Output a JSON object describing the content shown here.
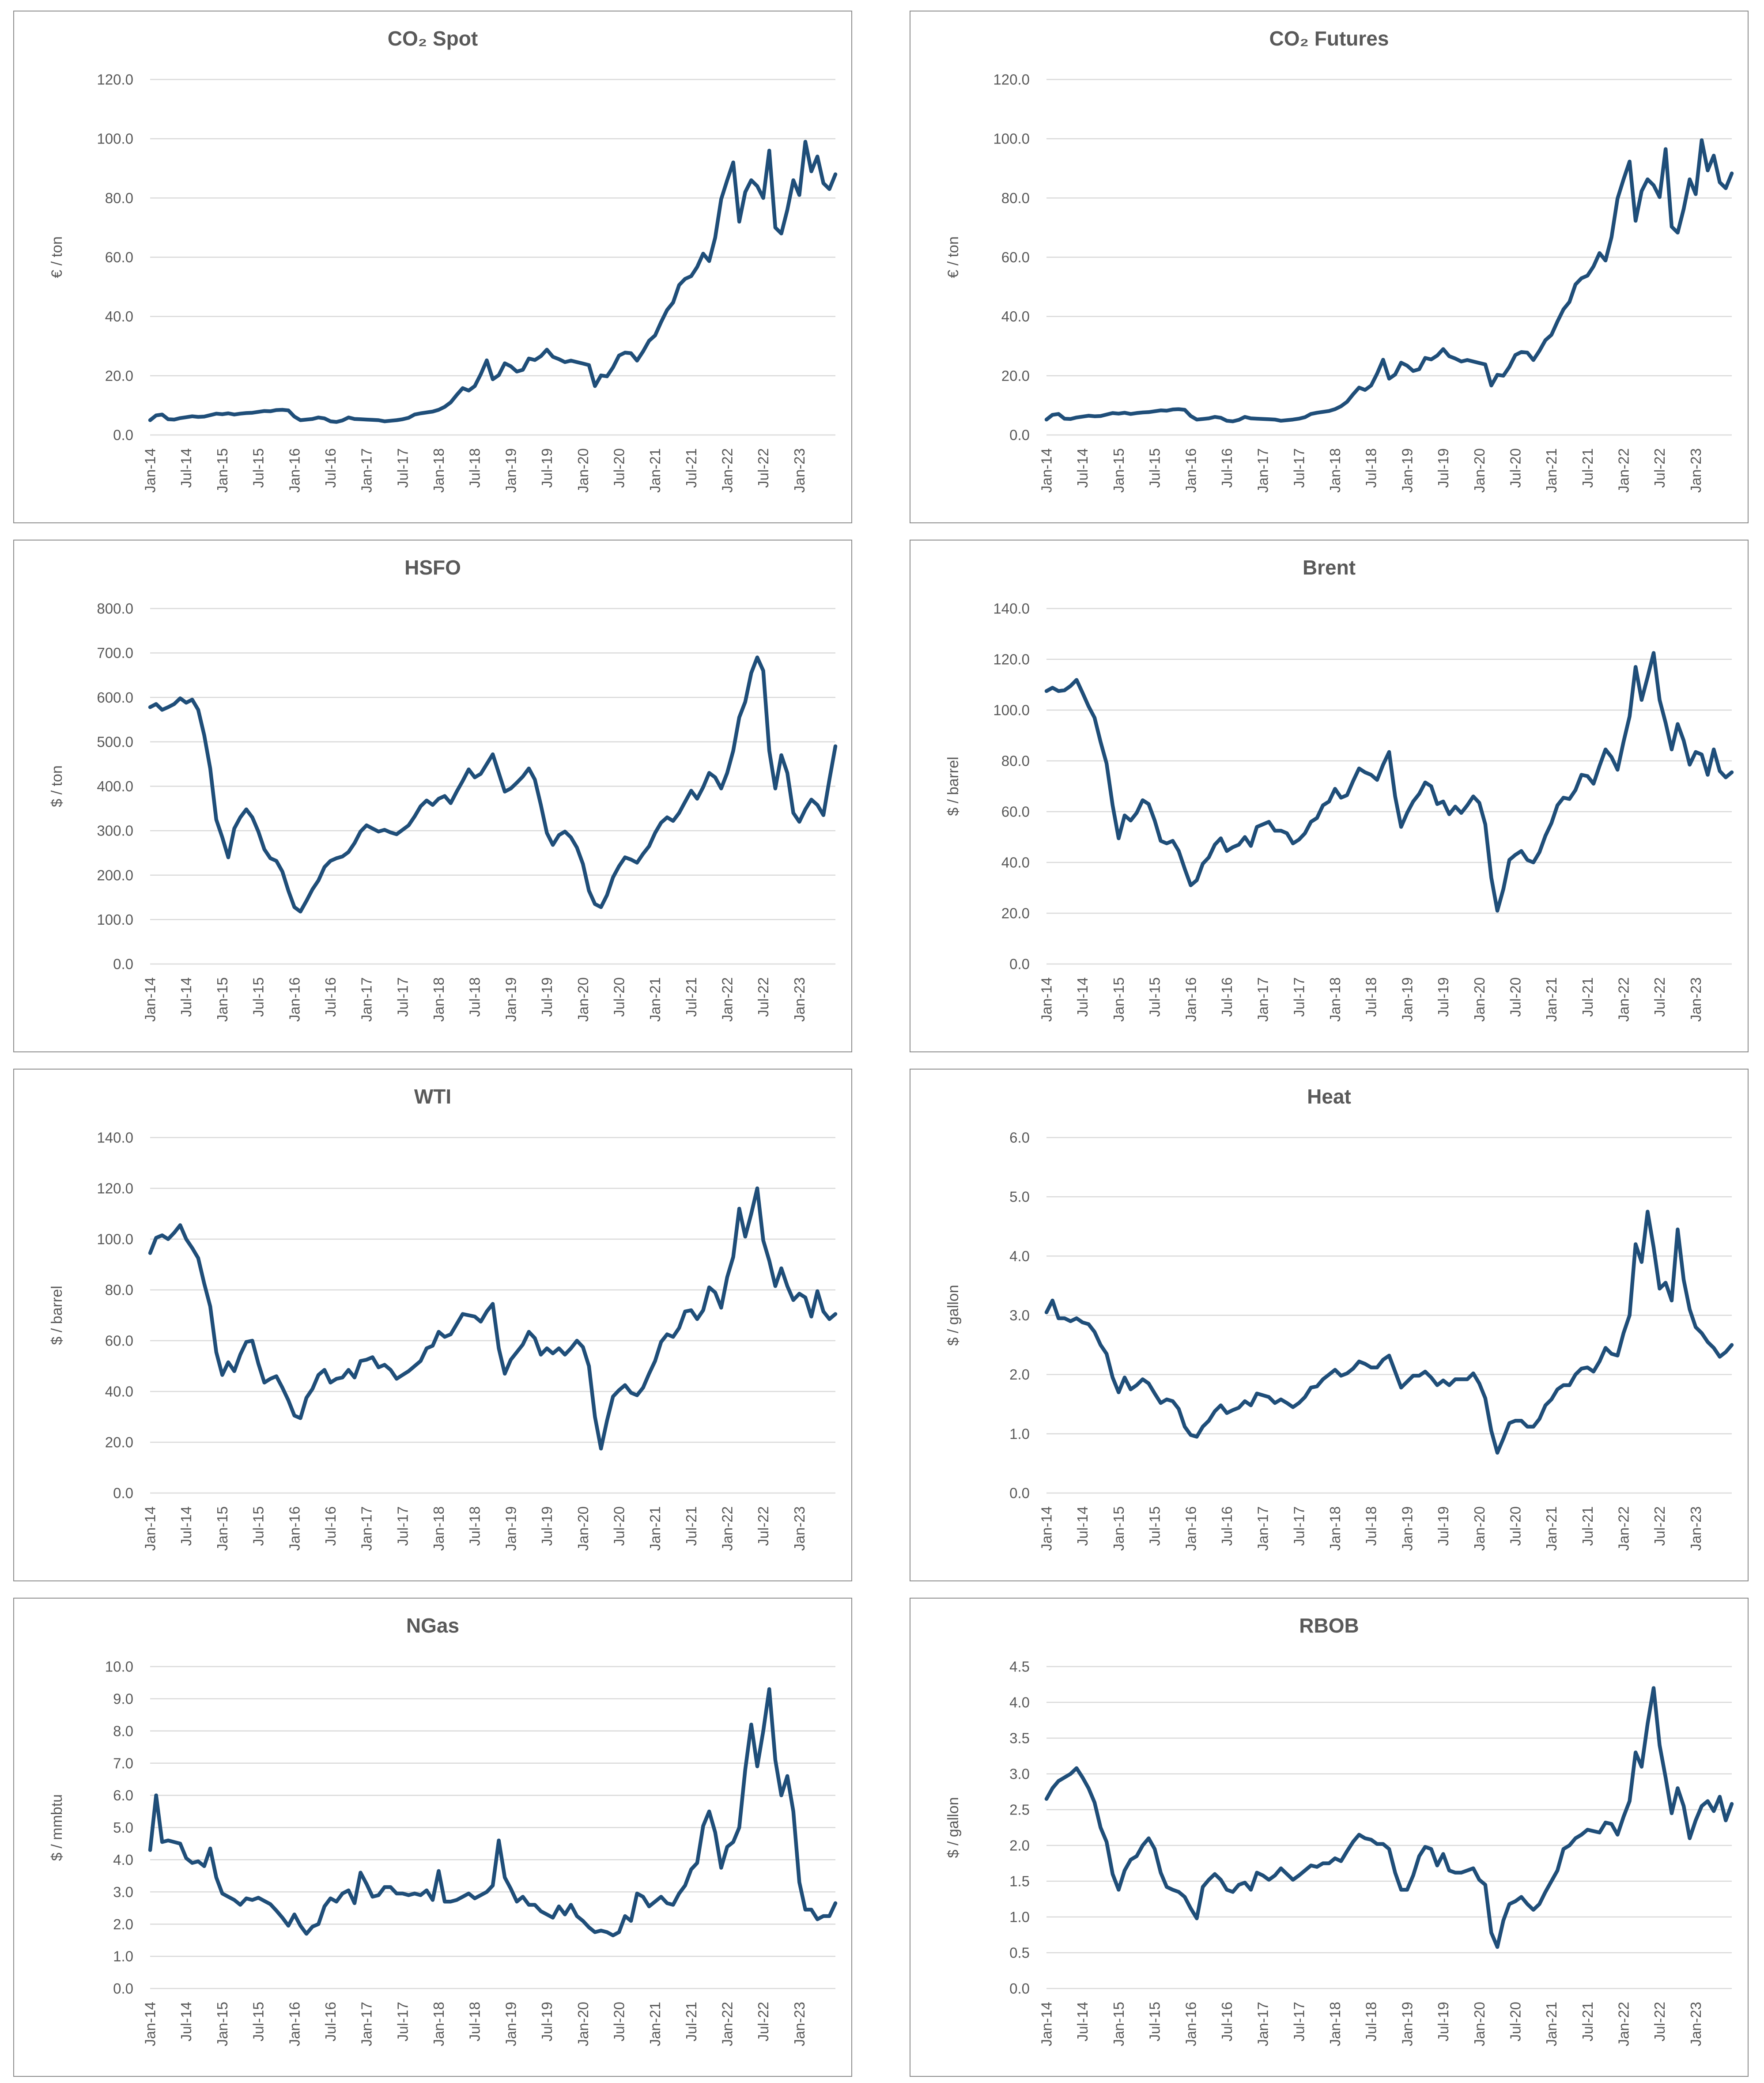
{
  "style": {
    "line_color": "#1F4E79",
    "grid_color": "#D9D9D9",
    "text_color": "#595959",
    "title_color": "#595959",
    "border_color": "#8c8c8c",
    "background": "#ffffff"
  },
  "x_tick_labels": [
    "Jan-14",
    "Jul-14",
    "Jan-15",
    "Jul-15",
    "Jan-16",
    "Jul-16",
    "Jan-17",
    "Jul-17",
    "Jan-18",
    "Jul-18",
    "Jan-19",
    "Jul-19",
    "Jan-20",
    "Jul-20",
    "Jan-21",
    "Jul-21",
    "Jan-22",
    "Jul-22",
    "Jan-23"
  ],
  "chart_data": [
    {
      "type": "line",
      "title": "CO₂ Spot",
      "ylabel": "€ / ton",
      "ylim": [
        0,
        120
      ],
      "ystep": 20,
      "grid": true,
      "legend": "none",
      "x_monthly_from": "Jan-14",
      "x_monthly_to": "Jul-23",
      "values": [
        5.0,
        6.6,
        6.9,
        5.3,
        5.2,
        5.7,
        6.0,
        6.3,
        6.1,
        6.2,
        6.7,
        7.2,
        7.0,
        7.3,
        6.9,
        7.2,
        7.4,
        7.5,
        7.8,
        8.1,
        8.0,
        8.4,
        8.5,
        8.3,
        6.2,
        5.0,
        5.2,
        5.4,
        5.9,
        5.6,
        4.6,
        4.4,
        4.9,
        5.9,
        5.4,
        5.3,
        5.2,
        5.1,
        5.0,
        4.6,
        4.8,
        5.0,
        5.3,
        5.8,
        6.9,
        7.3,
        7.6,
        7.9,
        8.5,
        9.5,
        11.0,
        13.5,
        15.8,
        15.0,
        16.5,
        20.5,
        25.2,
        18.8,
        20.2,
        24.2,
        23.2,
        21.4,
        22.0,
        25.8,
        25.3,
        26.6,
        28.8,
        26.4,
        25.6,
        24.6,
        25.1,
        24.6,
        24.1,
        23.6,
        16.5,
        20.1,
        19.8,
        22.8,
        26.8,
        27.8,
        27.6,
        25.1,
        28.2,
        31.8,
        33.6,
        38.1,
        42.2,
        44.7,
        50.6,
        52.7,
        53.6,
        56.7,
        61.2,
        58.7,
        66.6,
        79.6,
        86.0,
        92.0,
        72.0,
        82.0,
        86.0,
        84.0,
        80.0,
        96.0,
        70.0,
        68.0,
        76.0,
        86.0,
        81.0,
        99.0,
        89.0,
        94.0,
        85.0,
        83.0,
        88.0
      ]
    },
    {
      "type": "line",
      "title": "CO₂ Futures",
      "ylabel": "€ / ton",
      "ylim": [
        0,
        120
      ],
      "ystep": 20,
      "grid": true,
      "legend": "none",
      "x_monthly_from": "Jan-14",
      "x_monthly_to": "Jul-23",
      "values": [
        5.2,
        6.8,
        7.1,
        5.5,
        5.4,
        5.9,
        6.2,
        6.5,
        6.3,
        6.4,
        6.9,
        7.4,
        7.2,
        7.5,
        7.1,
        7.4,
        7.6,
        7.7,
        8.0,
        8.3,
        8.2,
        8.6,
        8.7,
        8.5,
        6.4,
        5.2,
        5.4,
        5.6,
        6.1,
        5.8,
        4.8,
        4.6,
        5.1,
        6.1,
        5.6,
        5.5,
        5.4,
        5.3,
        5.2,
        4.8,
        5.0,
        5.2,
        5.5,
        6.0,
        7.1,
        7.5,
        7.8,
        8.1,
        8.7,
        9.7,
        11.2,
        13.7,
        16.0,
        15.2,
        16.7,
        20.7,
        25.4,
        19.0,
        20.4,
        24.4,
        23.4,
        21.6,
        22.2,
        26.0,
        25.5,
        26.8,
        29.0,
        26.6,
        25.8,
        24.8,
        25.3,
        24.8,
        24.3,
        23.8,
        16.7,
        20.3,
        20.0,
        23.0,
        27.0,
        28.0,
        27.8,
        25.3,
        28.4,
        32.0,
        33.8,
        38.3,
        42.4,
        44.9,
        50.8,
        52.9,
        53.8,
        56.9,
        61.4,
        58.9,
        66.8,
        79.8,
        86.3,
        92.3,
        72.3,
        82.3,
        86.3,
        84.3,
        80.3,
        96.5,
        70.3,
        68.3,
        76.3,
        86.3,
        81.3,
        99.5,
        89.3,
        94.3,
        85.3,
        83.3,
        88.3
      ]
    },
    {
      "type": "line",
      "title": "HSFO",
      "ylabel": "$ / ton",
      "ylim": [
        0,
        800
      ],
      "ystep": 100,
      "grid": true,
      "legend": "none",
      "x_monthly_from": "Jan-14",
      "x_monthly_to": "Jul-23",
      "values": [
        578,
        585,
        572,
        578,
        585,
        598,
        588,
        595,
        572,
        515,
        440,
        325,
        285,
        240,
        305,
        330,
        348,
        330,
        298,
        258,
        238,
        232,
        208,
        165,
        128,
        118,
        142,
        168,
        188,
        218,
        232,
        238,
        242,
        252,
        272,
        298,
        312,
        305,
        298,
        302,
        296,
        292,
        302,
        312,
        332,
        355,
        368,
        358,
        372,
        378,
        362,
        388,
        412,
        438,
        420,
        428,
        450,
        472,
        430,
        388,
        395,
        408,
        422,
        440,
        415,
        358,
        295,
        268,
        290,
        298,
        285,
        262,
        225,
        165,
        135,
        128,
        155,
        195,
        220,
        240,
        235,
        228,
        248,
        265,
        295,
        318,
        330,
        322,
        340,
        365,
        390,
        372,
        398,
        430,
        420,
        395,
        430,
        480,
        555,
        590,
        655,
        690,
        660,
        480,
        395,
        470,
        430,
        340,
        320,
        348,
        370,
        358,
        335,
        415,
        490
      ]
    },
    {
      "type": "line",
      "title": "Brent",
      "ylabel": "$ / barrel",
      "ylim": [
        0,
        140
      ],
      "ystep": 20,
      "grid": true,
      "legend": "none",
      "x_monthly_from": "Jan-14",
      "x_monthly_to": "Jul-23",
      "values": [
        107.5,
        108.8,
        107.5,
        107.8,
        109.5,
        111.9,
        106.8,
        101.5,
        97.0,
        87.5,
        79.0,
        62.5,
        49.5,
        58.5,
        56.5,
        59.5,
        64.5,
        63.0,
        56.5,
        48.5,
        47.5,
        48.5,
        44.5,
        37.5,
        31.0,
        33.0,
        39.5,
        42.0,
        47.0,
        49.5,
        44.5,
        46.0,
        47.0,
        50.0,
        46.5,
        54.0,
        55.0,
        56.0,
        52.5,
        52.5,
        51.5,
        47.5,
        49.0,
        51.5,
        56.0,
        57.5,
        62.5,
        64.0,
        69.0,
        65.5,
        66.5,
        72.0,
        77.0,
        75.5,
        74.5,
        72.5,
        78.5,
        83.5,
        66.0,
        54.0,
        59.5,
        64.0,
        67.0,
        71.5,
        70.0,
        63.0,
        64.0,
        59.0,
        62.0,
        59.5,
        62.5,
        66.0,
        63.5,
        55.0,
        34.0,
        21.0,
        29.5,
        41.0,
        43.0,
        44.5,
        41.0,
        40.0,
        44.0,
        50.5,
        55.5,
        62.5,
        65.5,
        65.0,
        68.5,
        74.5,
        74.0,
        71.0,
        78.0,
        84.5,
        81.5,
        76.5,
        87.5,
        97.5,
        117.0,
        104.0,
        113.0,
        122.5,
        104.0,
        95.0,
        84.5,
        94.5,
        88.0,
        78.5,
        83.5,
        82.5,
        74.5,
        84.5,
        76.0,
        73.5,
        75.5
      ]
    },
    {
      "type": "line",
      "title": "WTI",
      "ylabel": "$ / barrel",
      "ylim": [
        0,
        140
      ],
      "ystep": 20,
      "grid": true,
      "legend": "none",
      "x_monthly_from": "Jan-14",
      "x_monthly_to": "Jul-23",
      "values": [
        94.5,
        100.5,
        101.5,
        100.0,
        102.5,
        105.5,
        100.0,
        96.5,
        92.5,
        82.5,
        73.5,
        55.5,
        46.5,
        51.5,
        48.0,
        54.5,
        59.5,
        60.0,
        51.0,
        43.5,
        45.0,
        46.0,
        41.5,
        36.5,
        30.5,
        29.5,
        37.5,
        41.0,
        46.5,
        48.5,
        43.5,
        45.0,
        45.5,
        48.5,
        45.5,
        52.0,
        52.5,
        53.5,
        49.5,
        50.5,
        48.5,
        45.0,
        46.5,
        48.0,
        50.0,
        52.0,
        57.0,
        58.0,
        63.5,
        61.5,
        62.5,
        66.5,
        70.5,
        70.0,
        69.5,
        67.5,
        71.5,
        74.5,
        57.0,
        47.0,
        52.5,
        55.5,
        58.5,
        63.5,
        61.0,
        54.5,
        57.0,
        55.0,
        57.0,
        54.5,
        57.0,
        60.0,
        57.5,
        50.0,
        30.0,
        17.5,
        28.5,
        38.0,
        40.5,
        42.5,
        39.5,
        38.5,
        41.5,
        47.0,
        52.0,
        59.5,
        62.5,
        61.5,
        65.0,
        71.5,
        72.0,
        68.5,
        72.0,
        81.0,
        79.0,
        73.0,
        85.0,
        93.0,
        112.0,
        101.0,
        110.0,
        120.0,
        99.5,
        91.5,
        81.5,
        88.5,
        81.5,
        76.0,
        78.5,
        77.0,
        69.5,
        79.5,
        71.5,
        68.5,
        70.5
      ]
    },
    {
      "type": "line",
      "title": "Heat",
      "ylabel": "$ / gallon",
      "ylim": [
        0,
        6
      ],
      "ystep": 1,
      "grid": true,
      "legend": "none",
      "x_monthly_from": "Jan-14",
      "x_monthly_to": "Jul-23",
      "values": [
        3.05,
        3.25,
        2.95,
        2.95,
        2.9,
        2.95,
        2.88,
        2.85,
        2.72,
        2.5,
        2.35,
        1.95,
        1.7,
        1.95,
        1.75,
        1.82,
        1.92,
        1.85,
        1.68,
        1.52,
        1.58,
        1.55,
        1.42,
        1.12,
        0.98,
        0.95,
        1.12,
        1.22,
        1.38,
        1.48,
        1.35,
        1.4,
        1.44,
        1.55,
        1.48,
        1.68,
        1.65,
        1.62,
        1.52,
        1.58,
        1.52,
        1.45,
        1.52,
        1.62,
        1.78,
        1.8,
        1.92,
        2.0,
        2.08,
        1.98,
        2.02,
        2.1,
        2.22,
        2.18,
        2.12,
        2.12,
        2.25,
        2.32,
        2.05,
        1.78,
        1.88,
        1.98,
        1.98,
        2.05,
        1.95,
        1.82,
        1.9,
        1.82,
        1.92,
        1.92,
        1.92,
        2.02,
        1.85,
        1.6,
        1.05,
        0.68,
        0.92,
        1.18,
        1.22,
        1.22,
        1.12,
        1.12,
        1.25,
        1.48,
        1.58,
        1.75,
        1.82,
        1.82,
        2.0,
        2.1,
        2.12,
        2.05,
        2.22,
        2.45,
        2.35,
        2.32,
        2.7,
        3.0,
        4.2,
        3.9,
        4.75,
        4.15,
        3.45,
        3.55,
        3.25,
        4.45,
        3.6,
        3.1,
        2.8,
        2.7,
        2.55,
        2.45,
        2.3,
        2.38,
        2.5
      ]
    },
    {
      "type": "line",
      "title": "NGas",
      "ylabel": "$ / mmbtu",
      "ylim": [
        0,
        10
      ],
      "ystep": 1,
      "grid": true,
      "legend": "none",
      "x_monthly_from": "Jan-14",
      "x_monthly_to": "Jul-23",
      "values": [
        4.3,
        6.0,
        4.55,
        4.6,
        4.55,
        4.5,
        4.05,
        3.9,
        3.95,
        3.8,
        4.35,
        3.45,
        2.95,
        2.85,
        2.75,
        2.6,
        2.8,
        2.75,
        2.82,
        2.72,
        2.62,
        2.42,
        2.2,
        1.95,
        2.3,
        1.95,
        1.7,
        1.92,
        2.0,
        2.55,
        2.8,
        2.7,
        2.95,
        3.05,
        2.65,
        3.6,
        3.25,
        2.85,
        2.9,
        3.15,
        3.15,
        2.95,
        2.95,
        2.9,
        2.95,
        2.9,
        3.05,
        2.75,
        3.65,
        2.7,
        2.7,
        2.75,
        2.85,
        2.95,
        2.8,
        2.9,
        3.0,
        3.2,
        4.6,
        3.45,
        3.1,
        2.7,
        2.85,
        2.6,
        2.6,
        2.4,
        2.3,
        2.2,
        2.55,
        2.3,
        2.6,
        2.25,
        2.1,
        1.9,
        1.75,
        1.8,
        1.75,
        1.65,
        1.75,
        2.25,
        2.1,
        2.95,
        2.85,
        2.55,
        2.7,
        2.85,
        2.65,
        2.6,
        2.95,
        3.2,
        3.7,
        3.9,
        5.05,
        5.5,
        4.85,
        3.75,
        4.4,
        4.55,
        5.0,
        6.8,
        8.2,
        6.9,
        8.0,
        9.3,
        7.1,
        6.0,
        6.6,
        5.5,
        3.3,
        2.45,
        2.45,
        2.15,
        2.25,
        2.25,
        2.65
      ]
    },
    {
      "type": "line",
      "title": "RBOB",
      "ylabel": "$ / gallon",
      "ylim": [
        0,
        4.5
      ],
      "ystep": 0.5,
      "grid": true,
      "legend": "none",
      "x_monthly_from": "Jan-14",
      "x_monthly_to": "Jul-23",
      "values": [
        2.65,
        2.8,
        2.9,
        2.95,
        3.0,
        3.08,
        2.95,
        2.8,
        2.6,
        2.25,
        2.05,
        1.6,
        1.38,
        1.65,
        1.8,
        1.85,
        2.0,
        2.1,
        1.95,
        1.62,
        1.42,
        1.38,
        1.35,
        1.28,
        1.12,
        0.98,
        1.42,
        1.52,
        1.6,
        1.52,
        1.38,
        1.35,
        1.45,
        1.48,
        1.38,
        1.62,
        1.58,
        1.52,
        1.58,
        1.68,
        1.6,
        1.52,
        1.58,
        1.65,
        1.72,
        1.7,
        1.75,
        1.75,
        1.82,
        1.78,
        1.92,
        2.05,
        2.15,
        2.1,
        2.08,
        2.02,
        2.02,
        1.95,
        1.62,
        1.38,
        1.38,
        1.58,
        1.85,
        1.98,
        1.95,
        1.72,
        1.88,
        1.65,
        1.62,
        1.62,
        1.65,
        1.68,
        1.52,
        1.45,
        0.78,
        0.58,
        0.95,
        1.18,
        1.22,
        1.28,
        1.18,
        1.1,
        1.18,
        1.35,
        1.5,
        1.65,
        1.95,
        2.0,
        2.1,
        2.15,
        2.22,
        2.2,
        2.18,
        2.32,
        2.3,
        2.15,
        2.4,
        2.62,
        3.3,
        3.1,
        3.7,
        4.2,
        3.4,
        2.95,
        2.45,
        2.8,
        2.55,
        2.1,
        2.35,
        2.55,
        2.62,
        2.48,
        2.68,
        2.35,
        2.58
      ]
    }
  ]
}
